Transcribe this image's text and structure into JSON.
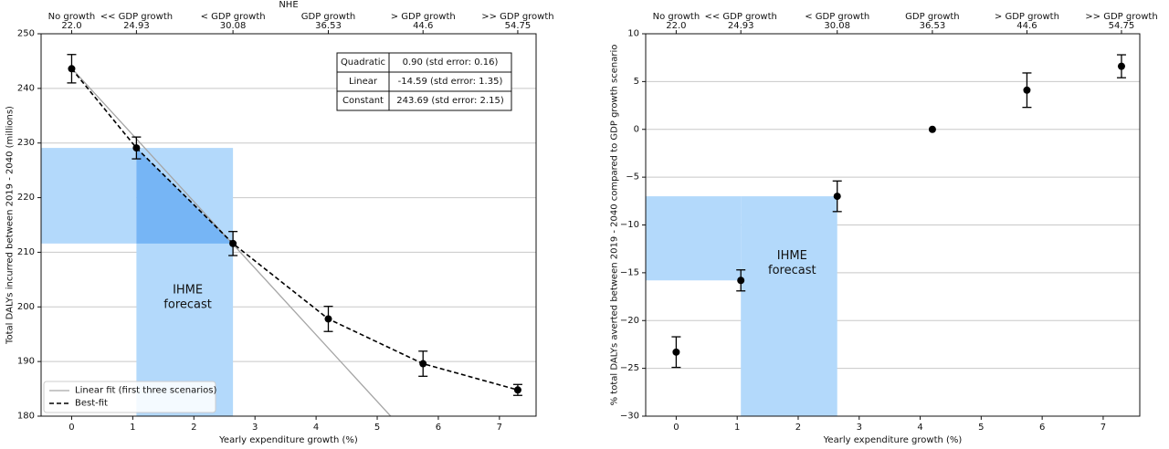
{
  "chart_data": [
    {
      "type": "scatter",
      "title": "",
      "xlabel": "Yearly expenditure growth (%)",
      "ylabel": "Total DALYs incurred between 2019 - 2040 (millions)",
      "xlim": [
        -0.5,
        7.6
      ],
      "ylim": [
        180,
        250
      ],
      "xticks": [
        "0",
        "1",
        "2",
        "3",
        "4",
        "5",
        "6",
        "7"
      ],
      "yticks": [
        "180",
        "190",
        "200",
        "210",
        "220",
        "230",
        "240",
        "250"
      ],
      "grid": "horizontal",
      "top_axis_label": "NHE",
      "top_ticks": [
        {
          "x": 0,
          "name": "No growth",
          "value": "22.0"
        },
        {
          "x": 1.06,
          "name": "<< GDP growth",
          "value": "24.93"
        },
        {
          "x": 2.64,
          "name": "< GDP growth",
          "value": "30.08"
        },
        {
          "x": 4.2,
          "name": "GDP growth",
          "value": "36.53"
        },
        {
          "x": 5.75,
          "name": "> GDP growth",
          "value": "44.6"
        },
        {
          "x": 7.3,
          "name": ">> GDP growth",
          "value": "54.75"
        }
      ],
      "series": [
        {
          "type": "errorbar",
          "x": [
            0,
            1.06,
            2.64,
            4.2,
            5.75,
            7.3
          ],
          "y": [
            243.6,
            229.1,
            211.6,
            197.8,
            189.6,
            184.8
          ],
          "err": [
            2.6,
            2.0,
            2.2,
            2.3,
            2.3,
            1.0
          ]
        },
        {
          "name": "Linear fit (first three scenarios)",
          "type": "line",
          "style": "solid",
          "color": "#a6a6a6",
          "x": [
            0,
            5.22
          ],
          "y": [
            243.69,
            180.0
          ]
        },
        {
          "name": "Best-fit",
          "type": "line",
          "style": "dashed",
          "color": "#000000",
          "x": [
            0,
            1.06,
            2.64,
            4.2,
            5.75,
            7.3
          ],
          "y": [
            243.6,
            229.1,
            211.6,
            197.8,
            189.6,
            184.8
          ]
        }
      ],
      "shaded_regions": {
        "x_band": [
          1.06,
          2.64
        ],
        "y_band": [
          211.6,
          229.1
        ],
        "color_light": "#b3d9fb",
        "color_dark": "#76b5f5"
      },
      "annotation": {
        "x": 1.9,
        "y": 202.5,
        "lines": [
          "IHME",
          "forecast"
        ],
        "color": "#1a73c8"
      },
      "table": [
        [
          "Quadratic",
          "0.90 (std error: 0.16)"
        ],
        [
          "Linear",
          "-14.59 (std error: 1.35)"
        ],
        [
          "Constant",
          "243.69 (std error: 2.15)"
        ]
      ],
      "legend_position": "bottom-left"
    },
    {
      "type": "scatter",
      "title": "",
      "xlabel": "Yearly expenditure growth (%)",
      "ylabel": "% total DALYs averted between 2019 - 2040 compared to GDP growth scenario",
      "xlim": [
        -0.5,
        7.6
      ],
      "ylim": [
        -30,
        10
      ],
      "xticks": [
        "0",
        "1",
        "2",
        "3",
        "4",
        "5",
        "6",
        "7"
      ],
      "yticks": [
        "−30",
        "−25",
        "−20",
        "−15",
        "−10",
        "−5",
        "0",
        "5",
        "10"
      ],
      "grid": "horizontal",
      "top_axis_label": "",
      "top_ticks": [
        {
          "x": 0,
          "name": "No growth",
          "value": "22.0"
        },
        {
          "x": 1.06,
          "name": "<< GDP growth",
          "value": "24.93"
        },
        {
          "x": 2.64,
          "name": "< GDP growth",
          "value": "30.08"
        },
        {
          "x": 4.2,
          "name": "GDP growth",
          "value": "36.53"
        },
        {
          "x": 5.75,
          "name": "> GDP growth",
          "value": "44.6"
        },
        {
          "x": 7.3,
          "name": ">> GDP growth",
          "value": "54.75"
        }
      ],
      "series": [
        {
          "type": "errorbar",
          "x": [
            0,
            1.06,
            2.64,
            4.2,
            5.75,
            7.3
          ],
          "y": [
            -23.3,
            -15.8,
            -7.0,
            0.0,
            4.1,
            6.6
          ],
          "err": [
            1.6,
            1.1,
            1.6,
            0,
            1.8,
            1.2
          ]
        }
      ],
      "shaded_regions": {
        "x_band": [
          1.06,
          2.64
        ],
        "y_band": [
          -15.8,
          -7.0
        ],
        "color_light": "#b3d9fb"
      },
      "annotation": {
        "x": 1.9,
        "y": -13.6,
        "lines": [
          "IHME",
          "forecast"
        ],
        "color": "#1a73c8"
      }
    }
  ]
}
